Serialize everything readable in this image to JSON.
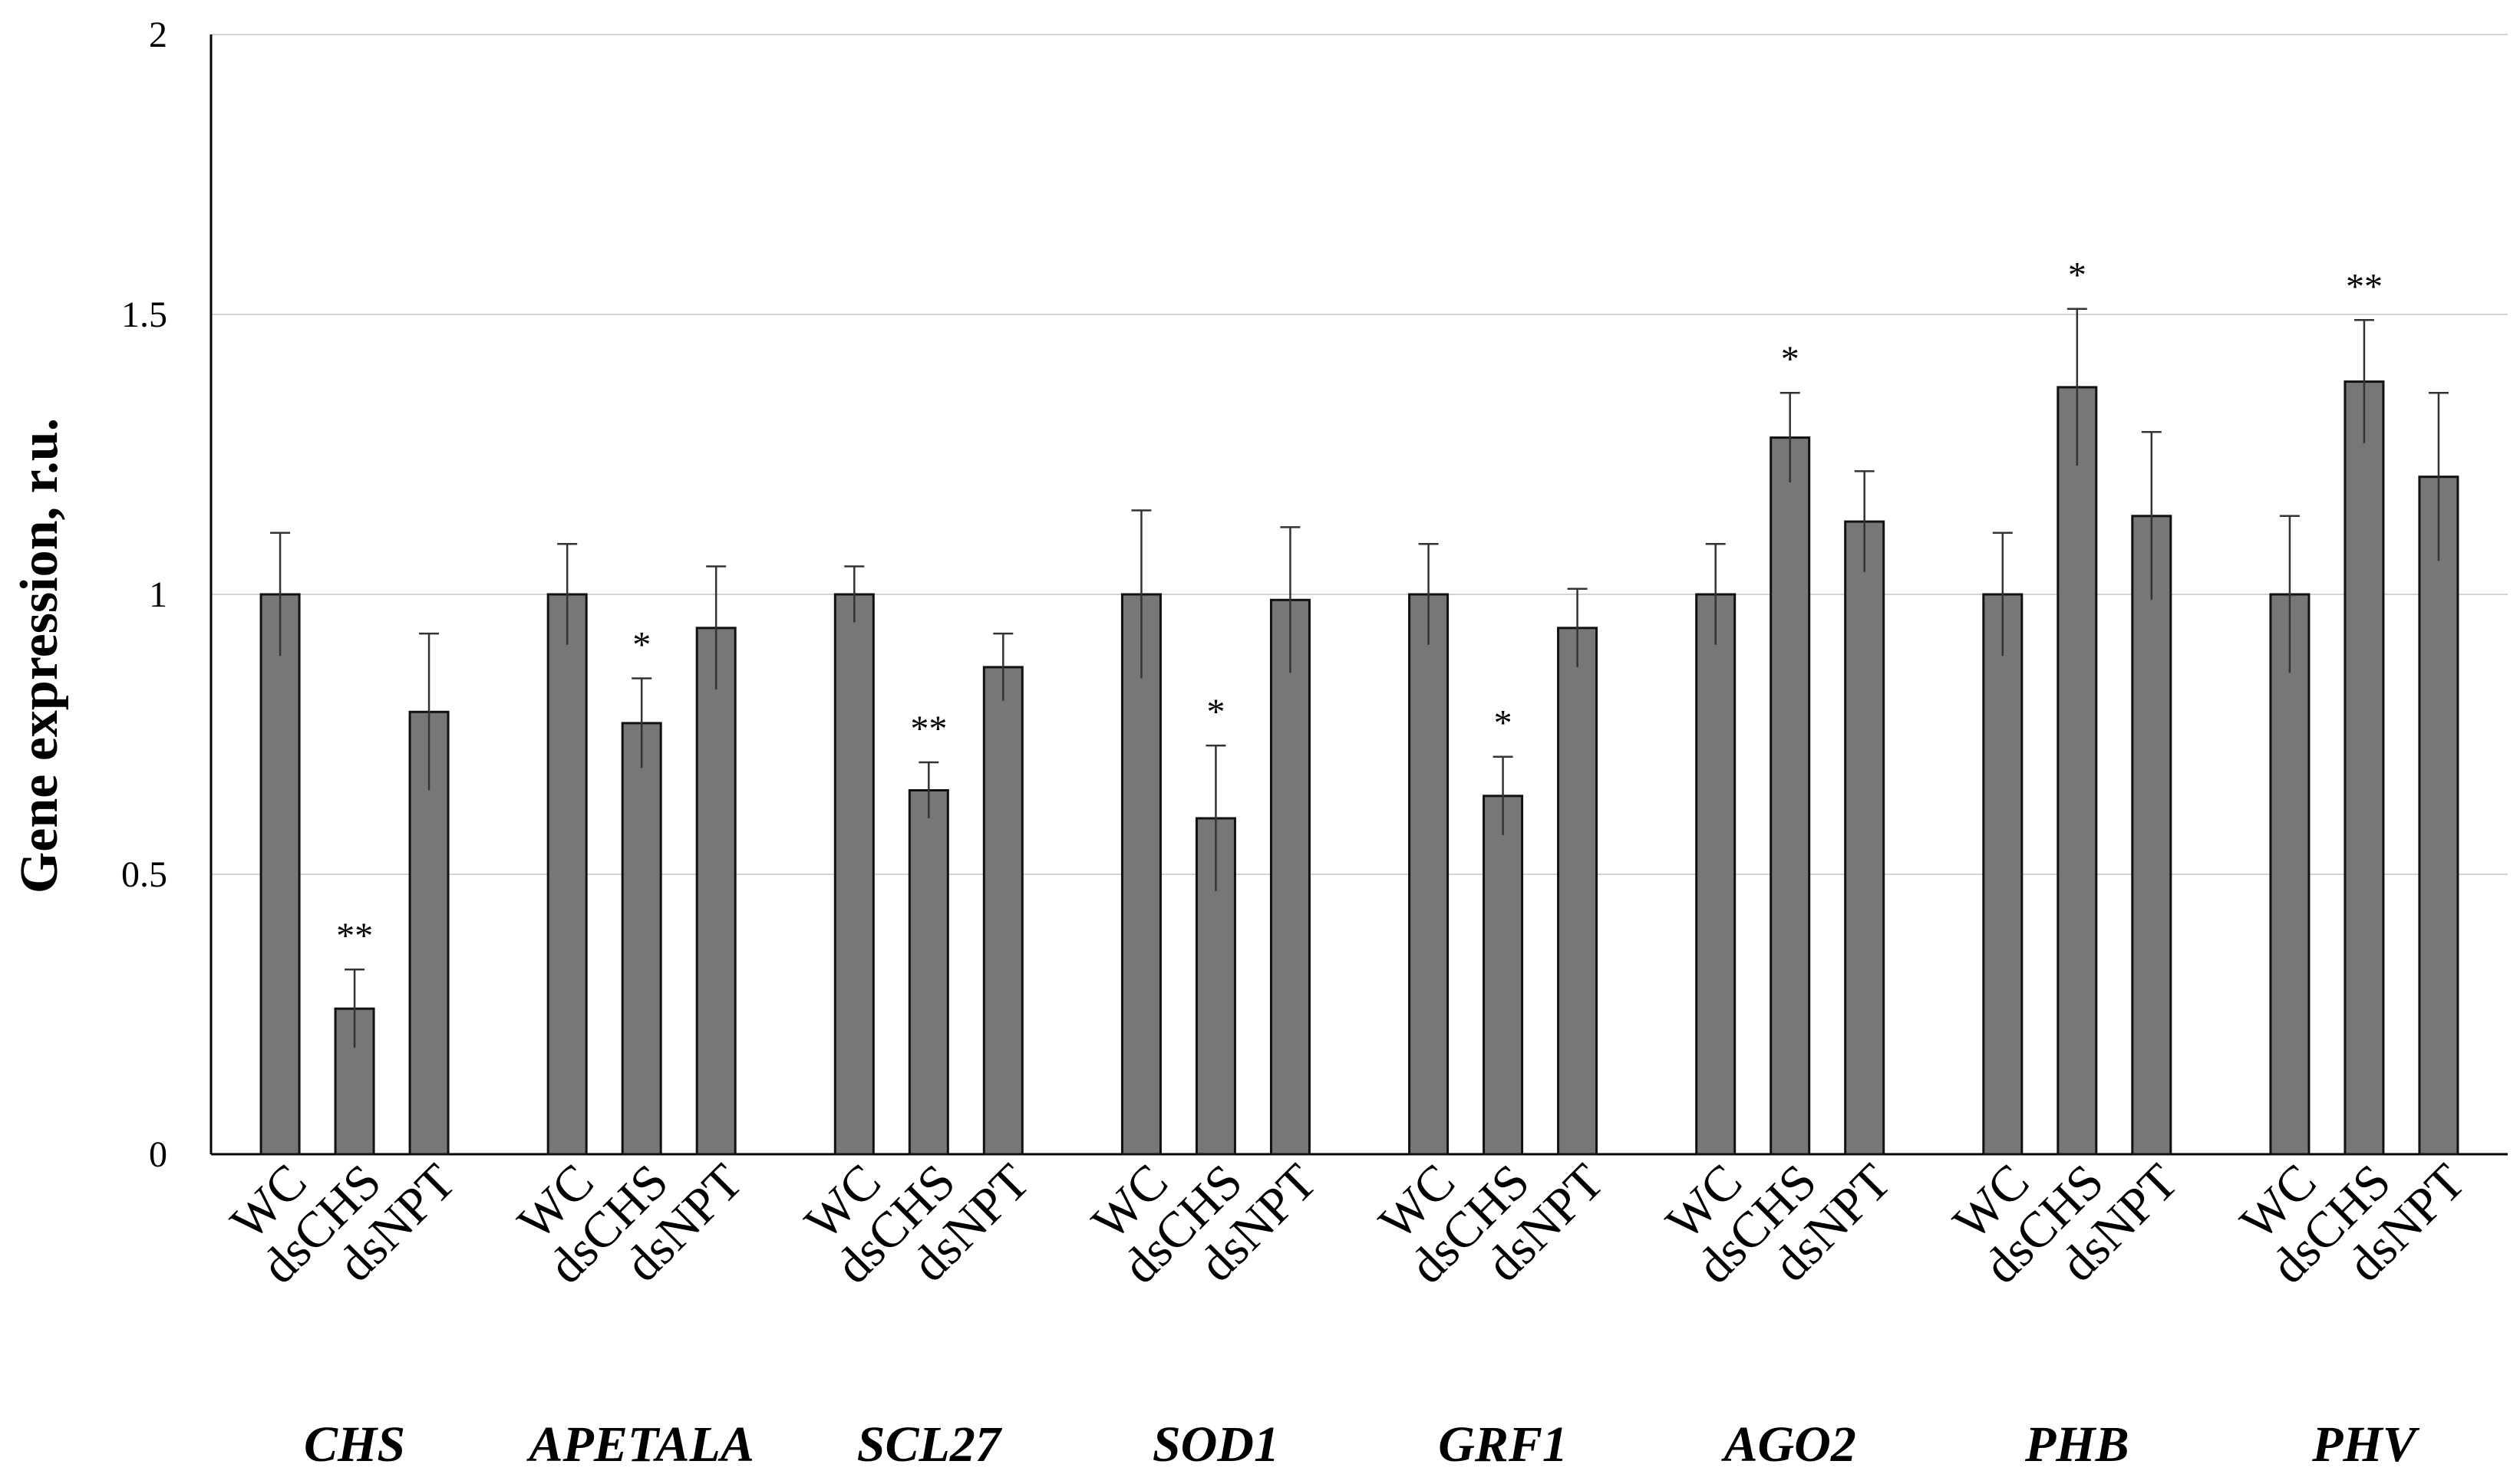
{
  "chart_data": {
    "type": "bar",
    "title": "",
    "ylabel": "Gene expression, r.u.",
    "xlabel": "",
    "ylim": [
      0,
      2
    ],
    "yticks": [
      0,
      0.5,
      1,
      1.5,
      2
    ],
    "ytick_labels": [
      "0",
      "0.5",
      "1",
      "1.5",
      "2"
    ],
    "grid": true,
    "bar_color": "#777777",
    "conditions": [
      "WC",
      "dsCHS",
      "dsNPT"
    ],
    "groups": [
      {
        "gene": "CHS",
        "values": [
          1.0,
          0.26,
          0.79
        ],
        "errors": [
          0.11,
          0.07,
          0.14
        ],
        "significance": [
          "",
          "**",
          ""
        ]
      },
      {
        "gene": "APETALA",
        "values": [
          1.0,
          0.77,
          0.94
        ],
        "errors": [
          0.09,
          0.08,
          0.11
        ],
        "significance": [
          "",
          "*",
          ""
        ]
      },
      {
        "gene": "SCL27",
        "values": [
          1.0,
          0.65,
          0.87
        ],
        "errors": [
          0.05,
          0.05,
          0.06
        ],
        "significance": [
          "",
          "**",
          ""
        ]
      },
      {
        "gene": "SOD1",
        "values": [
          1.0,
          0.6,
          0.99
        ],
        "errors": [
          0.15,
          0.13,
          0.13
        ],
        "significance": [
          "",
          "*",
          ""
        ]
      },
      {
        "gene": "GRF1",
        "values": [
          1.0,
          0.64,
          0.94
        ],
        "errors": [
          0.09,
          0.07,
          0.07
        ],
        "significance": [
          "",
          "*",
          ""
        ]
      },
      {
        "gene": "AGO2",
        "values": [
          1.0,
          1.28,
          1.13
        ],
        "errors": [
          0.09,
          0.08,
          0.09
        ],
        "significance": [
          "",
          "*",
          ""
        ]
      },
      {
        "gene": "PHB",
        "values": [
          1.0,
          1.37,
          1.14
        ],
        "errors": [
          0.11,
          0.14,
          0.15
        ],
        "significance": [
          "",
          "*",
          ""
        ]
      },
      {
        "gene": "PHV",
        "values": [
          1.0,
          1.38,
          1.21
        ],
        "errors": [
          0.14,
          0.11,
          0.15
        ],
        "significance": [
          "",
          "**",
          ""
        ]
      }
    ]
  }
}
